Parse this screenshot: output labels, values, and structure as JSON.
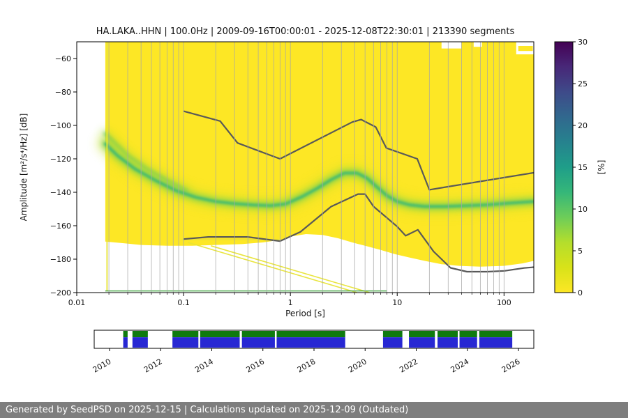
{
  "title": "HA.LAKA..HHN | 100.0Hz | 2009-09-16T00:00:01 - 2025-12-08T22:30:01 | 213390 segments",
  "footer": {
    "text": "Generated by SeedPSD on 2025-12-15 | Calculations updated on 2025-12-09 (Outdated)"
  },
  "chart_data": {
    "type": "heatmap",
    "title": "HA.LAKA..HHN | 100.0Hz | 2009-09-16T00:00:01 - 2025-12-08T22:30:01 | 213390 segments",
    "xlabel": "Period [s]",
    "ylabel": "Amplitude [m²/s⁴/Hz] [dB]",
    "xscale": "log",
    "xlim": [
      0.01,
      190
    ],
    "ylim": [
      -200,
      -50
    ],
    "xticks": [
      {
        "v": 0.01,
        "label": "0.01"
      },
      {
        "v": 0.1,
        "label": "0.1"
      },
      {
        "v": 1,
        "label": "1"
      },
      {
        "v": 10,
        "label": "10"
      },
      {
        "v": 100,
        "label": "100"
      }
    ],
    "yticks": [
      {
        "v": -60,
        "label": "−60"
      },
      {
        "v": -80,
        "label": "−80"
      },
      {
        "v": -100,
        "label": "−100"
      },
      {
        "v": -120,
        "label": "−120"
      },
      {
        "v": -140,
        "label": "−140"
      },
      {
        "v": -160,
        "label": "−160"
      },
      {
        "v": -180,
        "label": "−180"
      },
      {
        "v": -200,
        "label": "−200"
      }
    ],
    "grid": {
      "vertical_minor": true,
      "color": "#a6a6a6",
      "opacity": 0.9
    },
    "colorbar": {
      "label": "[%]",
      "min": 0,
      "max": 30,
      "ticks": [
        0,
        5,
        10,
        15,
        20,
        25,
        30
      ],
      "colormap": "viridis_reversed",
      "stops": [
        {
          "t": 0,
          "c": "#fde725"
        },
        {
          "t": 0.1,
          "c": "#d8e219"
        },
        {
          "t": 0.2,
          "c": "#b4de2c"
        },
        {
          "t": 0.3,
          "c": "#6dcd59"
        },
        {
          "t": 0.4,
          "c": "#35b779"
        },
        {
          "t": 0.5,
          "c": "#1f9e89"
        },
        {
          "t": 0.6,
          "c": "#26828e"
        },
        {
          "t": 0.7,
          "c": "#31688e"
        },
        {
          "t": 0.8,
          "c": "#3e4a89"
        },
        {
          "t": 0.9,
          "c": "#482878"
        },
        {
          "t": 1,
          "c": "#440154"
        }
      ]
    },
    "density": {
      "fill_color": "#fde725",
      "outline": [
        [
          0.0185,
          -50
        ],
        [
          190,
          -50
        ],
        [
          190,
          -181
        ],
        [
          150,
          -182.5
        ],
        [
          100,
          -184
        ],
        [
          60,
          -184.5
        ],
        [
          38,
          -184
        ],
        [
          26,
          -183
        ],
        [
          18,
          -181
        ],
        [
          13,
          -179
        ],
        [
          9.5,
          -177
        ],
        [
          7,
          -174.5
        ],
        [
          5,
          -172
        ],
        [
          3.8,
          -170
        ],
        [
          2.8,
          -167.5
        ],
        [
          2.0,
          -165.5
        ],
        [
          1.4,
          -165
        ],
        [
          1.0,
          -166.5
        ],
        [
          0.8,
          -168.5
        ],
        [
          0.55,
          -170
        ],
        [
          0.35,
          -171
        ],
        [
          0.2,
          -171.5
        ],
        [
          0.12,
          -172
        ],
        [
          0.07,
          -172
        ],
        [
          0.04,
          -171.5
        ],
        [
          0.028,
          -170.5
        ],
        [
          0.0185,
          -169.5
        ]
      ],
      "top_notches": [
        {
          "p1": 26,
          "p2": 40,
          "v": -54
        },
        {
          "p1": 52,
          "p2": 62,
          "v": -53
        },
        {
          "p1": 130,
          "p2": 190,
          "v": -57.5
        }
      ],
      "island": {
        "p1": 136,
        "p2": 186,
        "v1": -52.5,
        "v2": -55.5
      }
    },
    "bands": [
      {
        "name": "secondary-short-period-band",
        "points": [
          [
            0.0185,
            -105
          ],
          [
            0.023,
            -111
          ],
          [
            0.03,
            -118
          ],
          [
            0.045,
            -126
          ],
          [
            0.07,
            -133
          ],
          [
            0.105,
            -139
          ]
        ],
        "layers": [
          {
            "color": "#a8db34",
            "width": 14,
            "blur": 6,
            "opacity": 0.45
          },
          {
            "color": "#54c568",
            "width": 6,
            "blur": 2.5,
            "opacity": 0.6
          }
        ]
      },
      {
        "name": "left-edge-smear",
        "points": [
          [
            0.0192,
            -112
          ],
          [
            0.0192,
            -147
          ]
        ],
        "layers": [
          {
            "color": "#54c568",
            "width": 7,
            "blur": 3.5,
            "opacity": 0.6
          }
        ]
      },
      {
        "name": "mode-ridge",
        "points": [
          [
            0.0185,
            -111
          ],
          [
            0.024,
            -118
          ],
          [
            0.035,
            -126
          ],
          [
            0.055,
            -133
          ],
          [
            0.085,
            -139
          ],
          [
            0.13,
            -143
          ],
          [
            0.2,
            -145.5
          ],
          [
            0.3,
            -146.8
          ],
          [
            0.45,
            -147.6
          ],
          [
            0.65,
            -148
          ],
          [
            0.9,
            -147
          ],
          [
            1.3,
            -142.5
          ],
          [
            1.8,
            -137.5
          ],
          [
            2.4,
            -132.5
          ],
          [
            3.2,
            -128.5
          ],
          [
            4.2,
            -128.5
          ],
          [
            5.2,
            -131.5
          ],
          [
            6.5,
            -137
          ],
          [
            8,
            -142
          ],
          [
            10,
            -145.5
          ],
          [
            13,
            -147.5
          ],
          [
            18,
            -148.5
          ],
          [
            28,
            -148.5
          ],
          [
            45,
            -148
          ],
          [
            70,
            -147.5
          ],
          [
            110,
            -146.5
          ],
          [
            190,
            -145.5
          ]
        ],
        "layers": [
          {
            "color": "#c8e02a",
            "width": 24,
            "blur": 7,
            "opacity": 0.5
          },
          {
            "color": "#7ad151",
            "width": 11,
            "blur": 4,
            "opacity": 0.75
          },
          {
            "color": "#2fb47c",
            "width": 4,
            "blur": 1.5,
            "opacity": 0.8
          }
        ]
      },
      {
        "name": "thin-flat-band",
        "points": [
          [
            0.04,
            -145.3
          ],
          [
            1.0,
            -145.3
          ]
        ],
        "layers": [
          {
            "color": "#31b57b",
            "width": 2,
            "blur": 1,
            "opacity": 0.65
          }
        ]
      }
    ],
    "outlier_lines": [
      {
        "color": "#e8e436",
        "width": 1.6,
        "opacity": 0.95,
        "points": [
          [
            0.095,
            -168.3
          ],
          [
            0.85,
            -168.3
          ]
        ]
      },
      {
        "color": "#e8e436",
        "width": 1.6,
        "opacity": 0.95,
        "points": [
          [
            0.11,
            -170
          ],
          [
            4.2,
            -200
          ]
        ]
      },
      {
        "color": "#e8e436",
        "width": 1.6,
        "opacity": 0.95,
        "points": [
          [
            0.18,
            -172
          ],
          [
            5.5,
            -200
          ]
        ]
      },
      {
        "color": "#e8e436",
        "width": 2,
        "opacity": 0.9,
        "points": [
          [
            0.0192,
            -50
          ],
          [
            0.0192,
            -199
          ]
        ]
      },
      {
        "color": "#46a546",
        "width": 1.5,
        "opacity": 0.95,
        "points": [
          [
            0.0185,
            -199
          ],
          [
            8,
            -199
          ]
        ]
      }
    ],
    "noise_models": {
      "color": "#595959",
      "width": 2.2,
      "series": [
        {
          "name": "NHNM",
          "points": [
            [
              0.1,
              -91.5
            ],
            [
              0.22,
              -97.4
            ],
            [
              0.32,
              -110.5
            ],
            [
              0.8,
              -120
            ],
            [
              3.8,
              -98
            ],
            [
              4.6,
              -96.5
            ],
            [
              6.3,
              -101
            ],
            [
              7.9,
              -113.5
            ],
            [
              15.4,
              -120
            ],
            [
              20,
              -138.5
            ],
            [
              190,
              -128.3
            ]
          ]
        },
        {
          "name": "NLNM",
          "points": [
            [
              0.1,
              -168
            ],
            [
              0.17,
              -166.7
            ],
            [
              0.4,
              -166.7
            ],
            [
              0.8,
              -169.2
            ],
            [
              1.24,
              -163.7
            ],
            [
              2.4,
              -148.6
            ],
            [
              4.3,
              -141.1
            ],
            [
              5,
              -141.1
            ],
            [
              6,
              -148.5
            ],
            [
              10,
              -160.5
            ],
            [
              12,
              -166
            ],
            [
              15.6,
              -162.4
            ],
            [
              21.9,
              -175.4
            ],
            [
              31.6,
              -185.2
            ],
            [
              45,
              -187.5
            ],
            [
              70,
              -187.5
            ],
            [
              101,
              -187
            ],
            [
              154,
              -185.3
            ],
            [
              190,
              -184.8
            ]
          ]
        }
      ]
    }
  },
  "timeline": {
    "year_start": 2009.4,
    "year_end": 2026.6,
    "year_ticks": [
      2010,
      2012,
      2014,
      2016,
      2018,
      2020,
      2022,
      2024,
      2026
    ],
    "colors": {
      "blue": "#2727d3",
      "green": "#0f7a0f",
      "border": "#000000"
    },
    "green_fraction": 0.38,
    "segments": [
      {
        "start": 0.066,
        "end": 0.076
      },
      {
        "start": 0.087,
        "end": 0.122
      },
      {
        "start": 0.178,
        "end": 0.237
      },
      {
        "start": 0.241,
        "end": 0.331
      },
      {
        "start": 0.336,
        "end": 0.411
      },
      {
        "start": 0.415,
        "end": 0.571
      },
      {
        "start": 0.657,
        "end": 0.701
      },
      {
        "start": 0.716,
        "end": 0.775
      },
      {
        "start": 0.781,
        "end": 0.827
      },
      {
        "start": 0.831,
        "end": 0.871
      },
      {
        "start": 0.876,
        "end": 0.951
      }
    ]
  }
}
